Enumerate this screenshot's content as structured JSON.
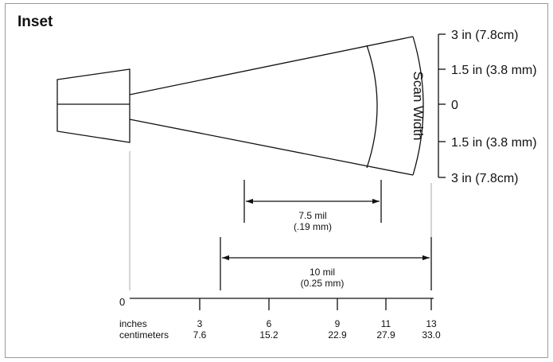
{
  "title": "Inset",
  "scan_width": {
    "axis_label": "Scan Width",
    "ticks": [
      {
        "label": "3 in (7.8cm)"
      },
      {
        "label": "1.5 in (3.8 mm)"
      },
      {
        "label": "0"
      },
      {
        "label": "1.5 in (3.8 mm)"
      },
      {
        "label": "3 in (7.8cm)"
      }
    ]
  },
  "resolutions": [
    {
      "line1": "7.5 mil",
      "line2": "(.19 mm)"
    },
    {
      "line1": "10 mil",
      "line2": "(0.25 mm)"
    }
  ],
  "distance_axis": {
    "origin_label": "0",
    "unit_inches": "inches",
    "unit_centimeters": "centimeters",
    "ticks": [
      {
        "inches": "3",
        "centimeters": "7.6"
      },
      {
        "inches": "6",
        "centimeters": "15.2"
      },
      {
        "inches": "9",
        "centimeters": "22.9"
      },
      {
        "inches": "11",
        "centimeters": "27.9"
      },
      {
        "inches": "13",
        "centimeters": "33.0"
      }
    ]
  }
}
